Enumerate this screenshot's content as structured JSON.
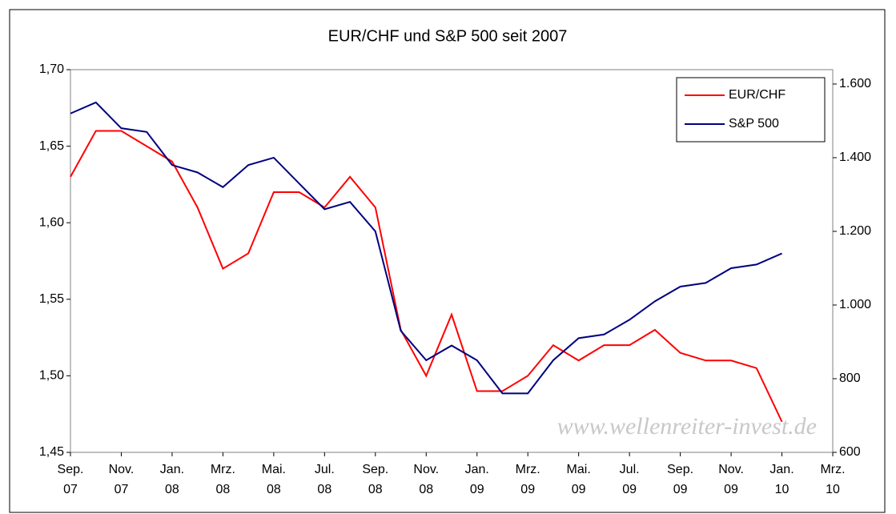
{
  "chart_data": {
    "type": "line",
    "title": "EUR/CHF und S&P 500 seit 2007",
    "watermark": "www.wellenreiter-invest.de",
    "categories": [
      [
        "Sep.",
        "07"
      ],
      [
        "Nov.",
        "07"
      ],
      [
        "Jan.",
        "08"
      ],
      [
        "Mrz.",
        "08"
      ],
      [
        "Mai.",
        "08"
      ],
      [
        "Jul.",
        "08"
      ],
      [
        "Sep.",
        "08"
      ],
      [
        "Nov.",
        "08"
      ],
      [
        "Jan.",
        "09"
      ],
      [
        "Mrz.",
        "09"
      ],
      [
        "Mai.",
        "09"
      ],
      [
        "Jul.",
        "09"
      ],
      [
        "Sep.",
        "09"
      ],
      [
        "Nov.",
        "09"
      ],
      [
        "Jan.",
        "10"
      ],
      [
        "Mrz.",
        "10"
      ]
    ],
    "xlim": [
      "2007-09",
      "2010-03"
    ],
    "x": [
      "2007-09",
      "2007-10",
      "2007-11",
      "2007-12",
      "2008-01",
      "2008-02",
      "2008-03",
      "2008-04",
      "2008-05",
      "2008-06",
      "2008-07",
      "2008-08",
      "2008-09",
      "2008-10",
      "2008-11",
      "2008-12",
      "2009-01",
      "2009-02",
      "2009-03",
      "2009-04",
      "2009-05",
      "2009-06",
      "2009-07",
      "2009-08",
      "2009-09",
      "2009-10",
      "2009-11",
      "2009-12",
      "2010-01"
    ],
    "series": [
      {
        "name": "EUR/CHF",
        "color": "#ff0000",
        "axis": "y",
        "values": [
          1.63,
          1.66,
          1.66,
          1.65,
          1.64,
          1.61,
          1.57,
          1.58,
          1.62,
          1.62,
          1.61,
          1.63,
          1.61,
          1.53,
          1.5,
          1.54,
          1.49,
          1.49,
          1.5,
          1.52,
          1.51,
          1.52,
          1.52,
          1.53,
          1.515,
          1.51,
          1.51,
          1.505,
          1.47
        ]
      },
      {
        "name": "S&P 500",
        "color": "#000080",
        "axis": "y2",
        "values": [
          1520,
          1550,
          1480,
          1470,
          1380,
          1360,
          1320,
          1380,
          1400,
          1330,
          1260,
          1280,
          1200,
          930,
          850,
          890,
          850,
          760,
          760,
          850,
          910,
          920,
          960,
          1010,
          1050,
          1060,
          1100,
          1110,
          1140
        ]
      }
    ],
    "ylim": [
      1.45,
      1.7
    ],
    "yticks": [
      {
        "value": 1.45,
        "label": "1,45"
      },
      {
        "value": 1.5,
        "label": "1,50"
      },
      {
        "value": 1.55,
        "label": "1,55"
      },
      {
        "value": 1.6,
        "label": "1,60"
      },
      {
        "value": 1.65,
        "label": "1,65"
      },
      {
        "value": 1.7,
        "label": "1,70"
      }
    ],
    "y2lim": [
      600,
      1639
    ],
    "y2ticks": [
      600,
      800,
      {
        "value": 1000,
        "label": "1.000"
      },
      {
        "value": 1200,
        "label": "1.200"
      },
      {
        "value": 1400,
        "label": "1.400"
      },
      {
        "value": 1600,
        "label": "1.600"
      }
    ],
    "legend": "top-right"
  }
}
